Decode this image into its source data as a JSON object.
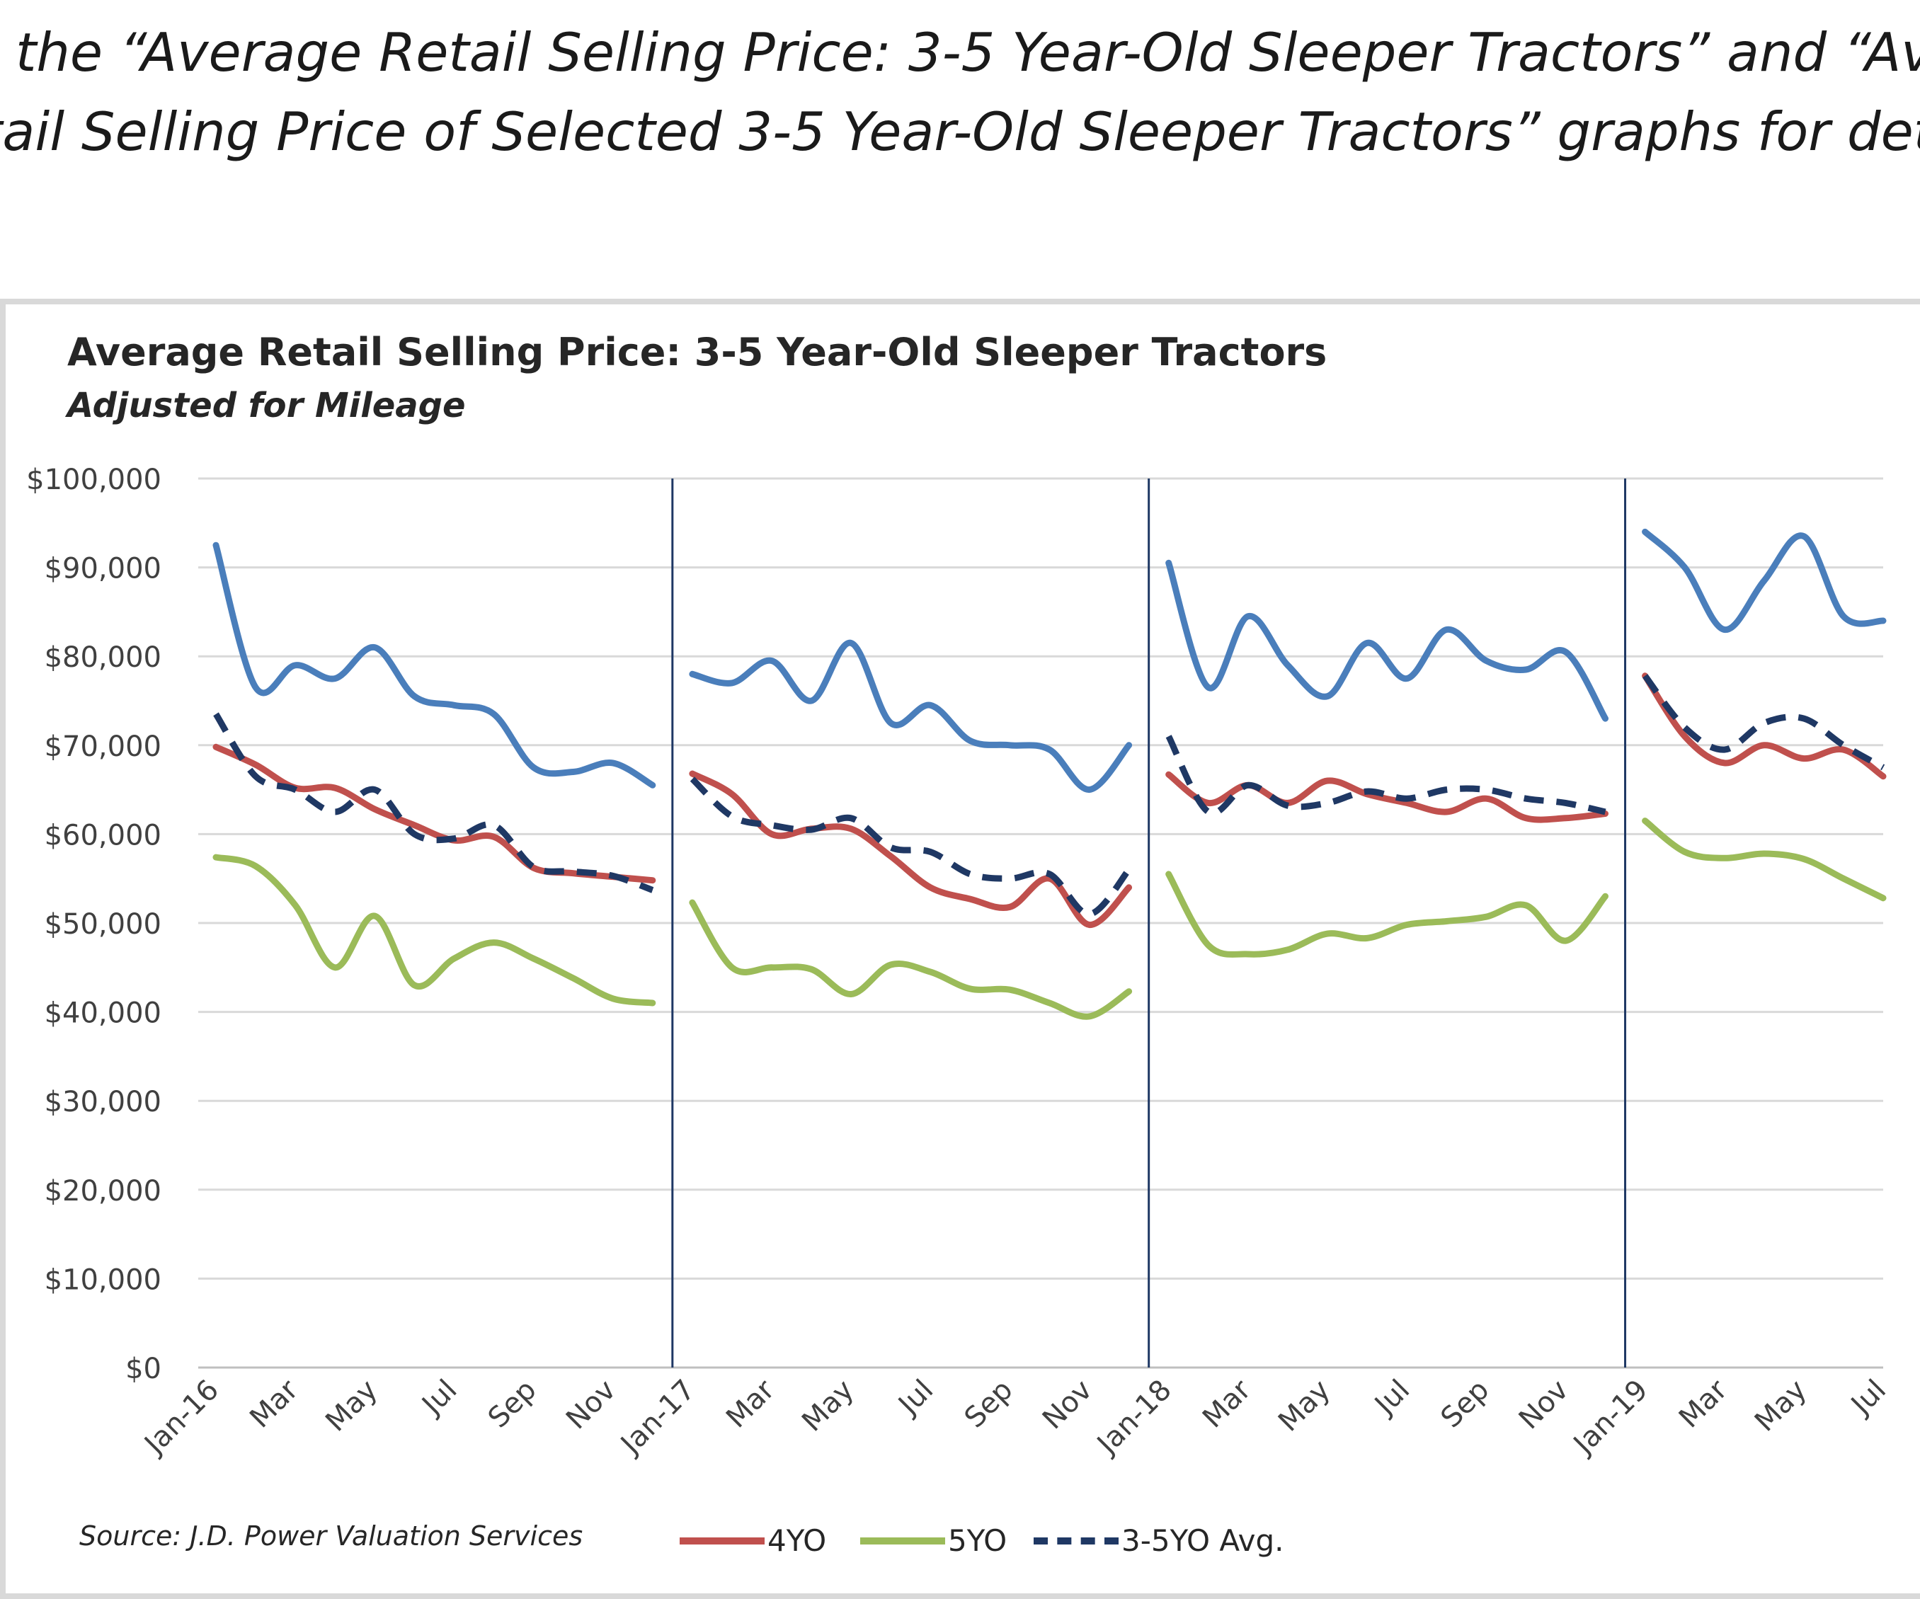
{
  "caption": {
    "line1": "e the “Average Retail Selling Price: 3-5 Year-Old Sleeper Tractors” and “Ave",
    "line2": "tail Selling Price of Selected 3-5 Year-Old Sleeper Tractors” graphs for deta"
  },
  "source": "Source: J.D. Power Valuation Services",
  "chart_data": {
    "type": "line",
    "title": "Average Retail Selling Price: 3-5 Year-Old Sleeper Tractors",
    "subtitle": "Adjusted for Mileage",
    "xlabel": "",
    "ylabel": "",
    "ylim": [
      0,
      100000
    ],
    "y_ticks": [
      "$0",
      "$10,000",
      "$20,000",
      "$30,000",
      "$40,000",
      "$50,000",
      "$60,000",
      "$70,000",
      "$80,000",
      "$90,000",
      "$100,000"
    ],
    "grid": true,
    "legend_position": "bottom",
    "categories": [
      "Jan-16",
      "Feb-16",
      "Mar-16",
      "Apr-16",
      "May-16",
      "Jun-16",
      "Jul-16",
      "Aug-16",
      "Sep-16",
      "Oct-16",
      "Nov-16",
      "Dec-16",
      "Jan-17",
      "Feb-17",
      "Mar-17",
      "Apr-17",
      "May-17",
      "Jun-17",
      "Jul-17",
      "Aug-17",
      "Sep-17",
      "Oct-17",
      "Nov-17",
      "Dec-17",
      "Jan-18",
      "Feb-18",
      "Mar-18",
      "Apr-18",
      "May-18",
      "Jun-18",
      "Jul-18",
      "Aug-18",
      "Sep-18",
      "Oct-18",
      "Nov-18",
      "Dec-18",
      "Jan-19",
      "Feb-19",
      "Mar-19",
      "Apr-19",
      "May-19",
      "Jun-19",
      "Jul-19"
    ],
    "tick_labels": [
      "Jan-16",
      "Mar",
      "May",
      "Jul",
      "Sep",
      "Nov",
      "Jan-17",
      "Mar",
      "May",
      "Jul",
      "Sep",
      "Nov",
      "Jan-18",
      "Mar",
      "May",
      "Jul",
      "Sep",
      "Nov",
      "Jan-19",
      "Mar",
      "May",
      "Jul"
    ],
    "tick_label_positions": [
      0,
      2,
      4,
      6,
      8,
      10,
      12,
      14,
      16,
      18,
      20,
      22,
      24,
      26,
      28,
      30,
      32,
      34,
      36,
      38,
      40,
      42
    ],
    "year_dividers": [
      11.5,
      23.5,
      35.5
    ],
    "segments": [
      [
        0,
        11
      ],
      [
        12,
        23
      ],
      [
        24,
        35
      ],
      [
        36,
        42
      ]
    ],
    "series": [
      {
        "name": "",
        "color": "#4a7ebb",
        "dashed": false,
        "values": [
          92500,
          76500,
          79000,
          77500,
          81000,
          75500,
          74500,
          73500,
          67500,
          67000,
          68000,
          65500,
          78000,
          77000,
          79500,
          75000,
          81500,
          72500,
          74500,
          70500,
          70000,
          69500,
          65000,
          70000,
          90500,
          76500,
          84500,
          79000,
          75500,
          81500,
          77500,
          83000,
          79500,
          78500,
          80500,
          73000,
          94000,
          90000,
          83000,
          88500,
          93500,
          84500,
          84000
        ]
      },
      {
        "name": "4YO",
        "color": "#c0504d",
        "dashed": false,
        "values": [
          69800,
          67800,
          65200,
          65200,
          62800,
          61000,
          59300,
          59700,
          56200,
          55600,
          55200,
          54800,
          66800,
          64500,
          60000,
          60600,
          60600,
          57500,
          54000,
          52700,
          51800,
          55000,
          49800,
          54000,
          66700,
          63500,
          65500,
          63500,
          66000,
          64500,
          63500,
          62500,
          64000,
          61800,
          61800,
          62300,
          77800,
          71000,
          68000,
          70000,
          68500,
          69500,
          66500
        ]
      },
      {
        "name": "5YO",
        "color": "#9bbb59",
        "dashed": false,
        "values": [
          57400,
          56400,
          52000,
          45000,
          50800,
          43000,
          46000,
          47800,
          46000,
          43800,
          41500,
          41000,
          52300,
          45000,
          45000,
          44800,
          42000,
          45300,
          44500,
          42600,
          42500,
          41000,
          39500,
          42300,
          55500,
          47500,
          46500,
          47000,
          48800,
          48300,
          49800,
          50200,
          50700,
          52000,
          48000,
          53000,
          61500,
          58000,
          57300,
          57800,
          57200,
          55000,
          52800
        ]
      },
      {
        "name": "3-5YO Avg.",
        "color": "#1f3864",
        "dashed": true,
        "values": [
          73500,
          66500,
          65000,
          62500,
          65000,
          60000,
          59500,
          61000,
          56300,
          55800,
          55300,
          53700,
          66200,
          62000,
          61000,
          60500,
          61800,
          58500,
          58000,
          55500,
          55000,
          55500,
          51000,
          56000,
          71000,
          62500,
          65500,
          63200,
          63500,
          64800,
          64000,
          65000,
          65000,
          64000,
          63500,
          62500,
          77800,
          72000,
          69500,
          72500,
          73000,
          70000,
          67500
        ]
      }
    ]
  }
}
